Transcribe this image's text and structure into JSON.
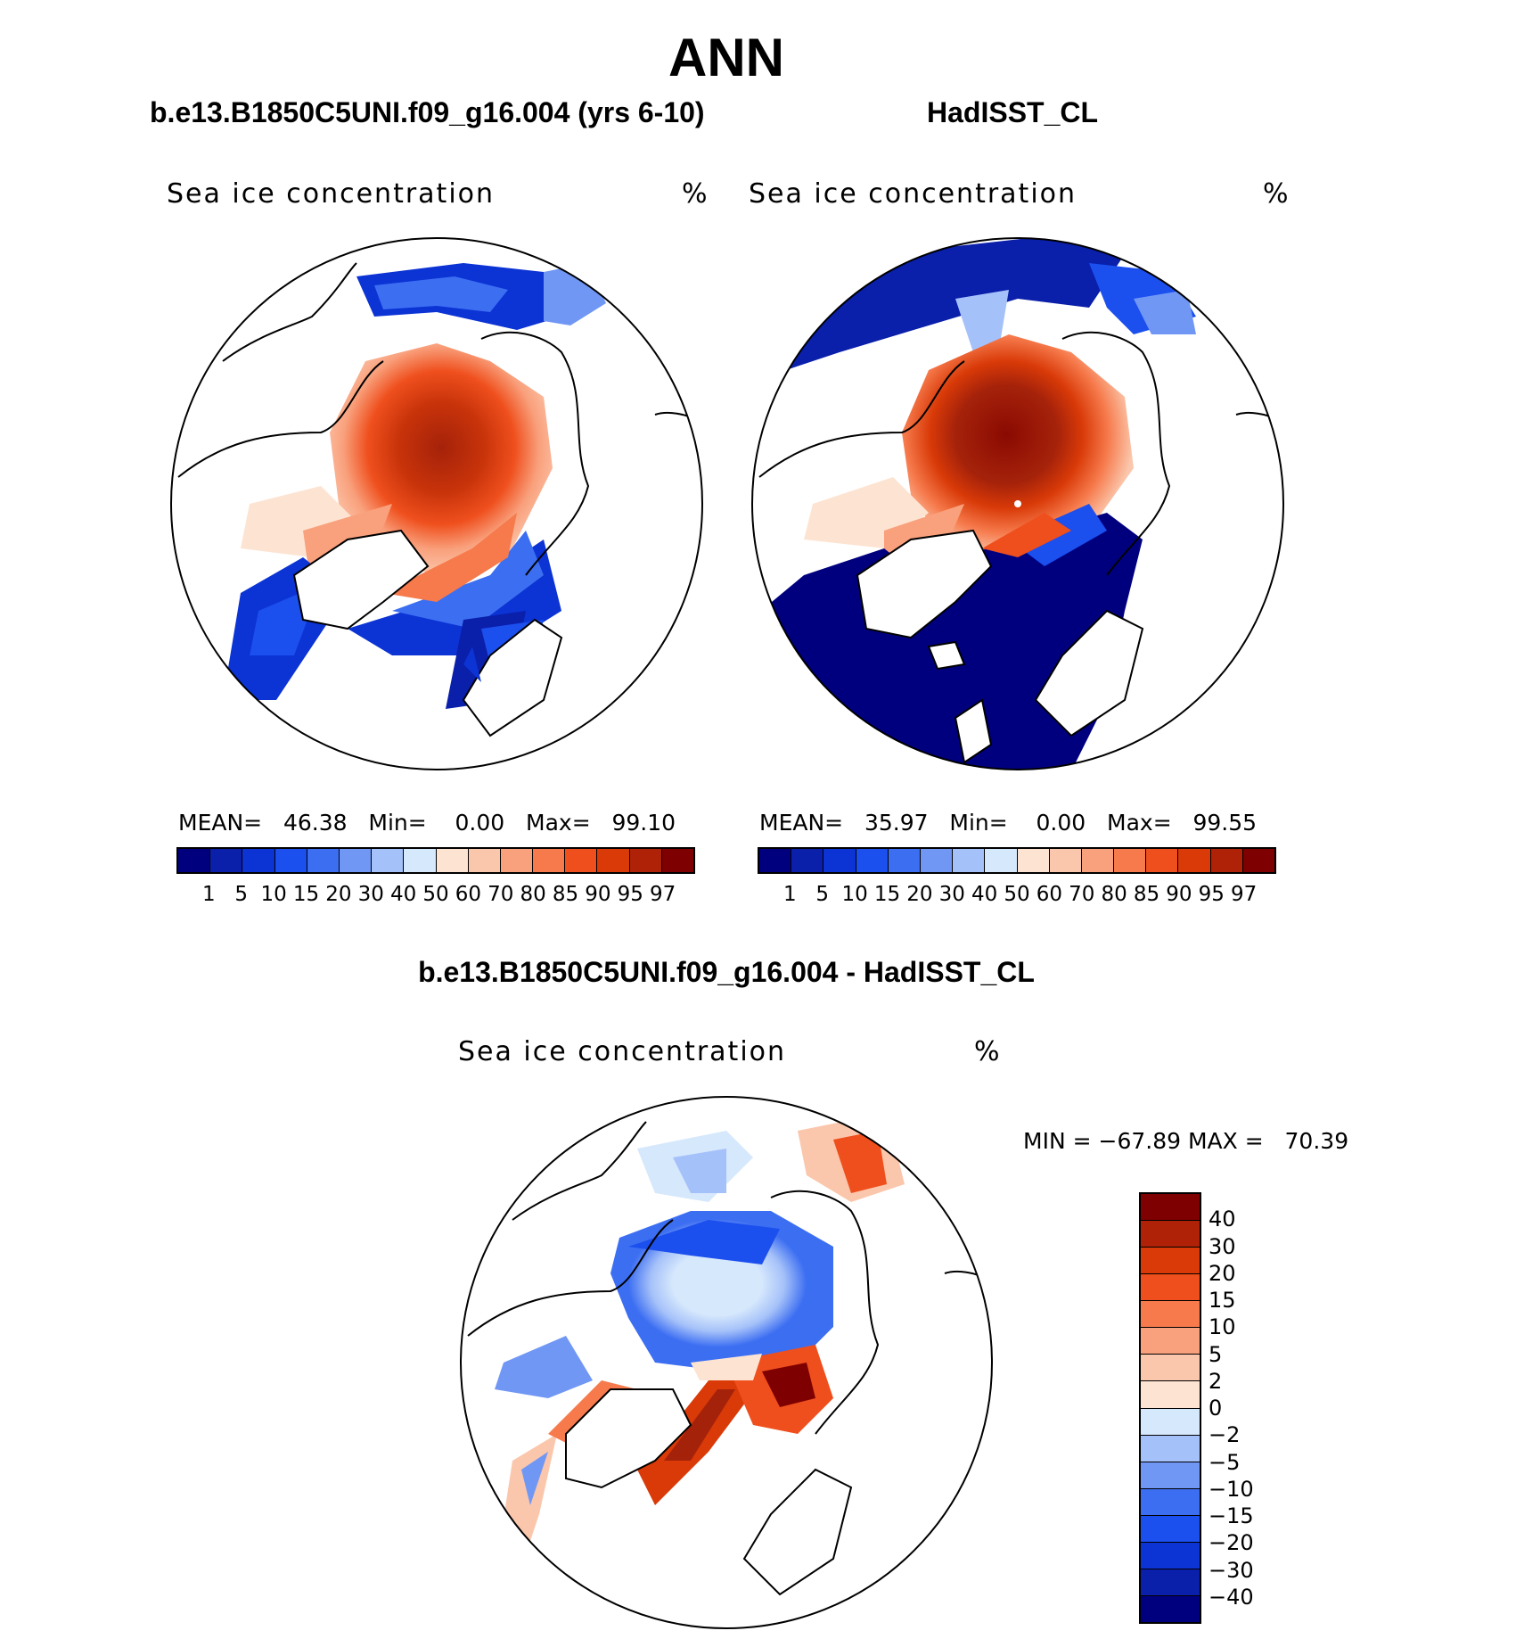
{
  "title": "ANN",
  "panels": [
    {
      "title": "b.e13.B1850C5UNI.f09_g16.004 (yrs 6-10)",
      "variable": "Sea ice concentration",
      "units": "%",
      "stats": {
        "mean_label": "MEAN=",
        "mean": "46.38",
        "min_label": "Min=",
        "min": "0.00",
        "max_label": "Max=",
        "max": "99.10"
      }
    },
    {
      "title": "HadISST_CL",
      "variable": "Sea ice concentration",
      "units": "%",
      "stats": {
        "mean_label": "MEAN=",
        "mean": "35.97",
        "min_label": "Min=",
        "min": "0.00",
        "max_label": "Max=",
        "max": "99.55"
      }
    },
    {
      "title": "b.e13.B1850C5UNI.f09_g16.004 - HadISST_CL",
      "variable": "Sea ice concentration",
      "units": "%",
      "stats": {
        "min_label": "MIN =",
        "min": "−67.89",
        "max_label": "MAX =",
        "max": "70.39"
      }
    }
  ],
  "colorbar_main": {
    "ticks": [
      "1",
      "5",
      "10",
      "15",
      "20",
      "30",
      "40",
      "50",
      "60",
      "70",
      "80",
      "85",
      "90",
      "95",
      "97"
    ],
    "colors": [
      "#00007f",
      "#0a1faa",
      "#0c33d4",
      "#1b4fee",
      "#3c6ef2",
      "#7197f5",
      "#a5c1f9",
      "#d6e8fc",
      "#fde4d2",
      "#fbc7ac",
      "#f9a07c",
      "#f67a4c",
      "#ef4f1d",
      "#d93a08",
      "#b02208",
      "#7f0000"
    ]
  },
  "colorbar_diff": {
    "ticks": [
      "40",
      "30",
      "20",
      "15",
      "10",
      "5",
      "2",
      "0",
      "−2",
      "−5",
      "−10",
      "−15",
      "−20",
      "−30",
      "−40"
    ],
    "colors": [
      "#7f0000",
      "#b02208",
      "#d93a08",
      "#ef4f1d",
      "#f67a4c",
      "#f9a07c",
      "#fbc7ac",
      "#fde4d2",
      "#d6e8fc",
      "#a5c1f9",
      "#7197f5",
      "#3c6ef2",
      "#1b4fee",
      "#0c33d4",
      "#0a1faa",
      "#00007f"
    ]
  }
}
